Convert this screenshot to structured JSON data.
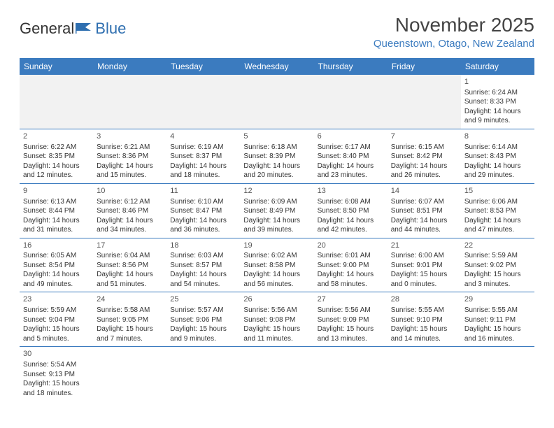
{
  "logo": {
    "text1": "General",
    "text2": "Blue"
  },
  "title": "November 2025",
  "location": "Queenstown, Otago, New Zealand",
  "colors": {
    "header_bg": "#3b7bbf",
    "link": "#3b7bbf",
    "blank_bg": "#f2f2f2"
  },
  "weekdays": [
    "Sunday",
    "Monday",
    "Tuesday",
    "Wednesday",
    "Thursday",
    "Friday",
    "Saturday"
  ],
  "weeks": [
    [
      null,
      null,
      null,
      null,
      null,
      null,
      {
        "n": "1",
        "rise": "Sunrise: 6:24 AM",
        "set": "Sunset: 8:33 PM",
        "dl1": "Daylight: 14 hours",
        "dl2": "and 9 minutes."
      }
    ],
    [
      {
        "n": "2",
        "rise": "Sunrise: 6:22 AM",
        "set": "Sunset: 8:35 PM",
        "dl1": "Daylight: 14 hours",
        "dl2": "and 12 minutes."
      },
      {
        "n": "3",
        "rise": "Sunrise: 6:21 AM",
        "set": "Sunset: 8:36 PM",
        "dl1": "Daylight: 14 hours",
        "dl2": "and 15 minutes."
      },
      {
        "n": "4",
        "rise": "Sunrise: 6:19 AM",
        "set": "Sunset: 8:37 PM",
        "dl1": "Daylight: 14 hours",
        "dl2": "and 18 minutes."
      },
      {
        "n": "5",
        "rise": "Sunrise: 6:18 AM",
        "set": "Sunset: 8:39 PM",
        "dl1": "Daylight: 14 hours",
        "dl2": "and 20 minutes."
      },
      {
        "n": "6",
        "rise": "Sunrise: 6:17 AM",
        "set": "Sunset: 8:40 PM",
        "dl1": "Daylight: 14 hours",
        "dl2": "and 23 minutes."
      },
      {
        "n": "7",
        "rise": "Sunrise: 6:15 AM",
        "set": "Sunset: 8:42 PM",
        "dl1": "Daylight: 14 hours",
        "dl2": "and 26 minutes."
      },
      {
        "n": "8",
        "rise": "Sunrise: 6:14 AM",
        "set": "Sunset: 8:43 PM",
        "dl1": "Daylight: 14 hours",
        "dl2": "and 29 minutes."
      }
    ],
    [
      {
        "n": "9",
        "rise": "Sunrise: 6:13 AM",
        "set": "Sunset: 8:44 PM",
        "dl1": "Daylight: 14 hours",
        "dl2": "and 31 minutes."
      },
      {
        "n": "10",
        "rise": "Sunrise: 6:12 AM",
        "set": "Sunset: 8:46 PM",
        "dl1": "Daylight: 14 hours",
        "dl2": "and 34 minutes."
      },
      {
        "n": "11",
        "rise": "Sunrise: 6:10 AM",
        "set": "Sunset: 8:47 PM",
        "dl1": "Daylight: 14 hours",
        "dl2": "and 36 minutes."
      },
      {
        "n": "12",
        "rise": "Sunrise: 6:09 AM",
        "set": "Sunset: 8:49 PM",
        "dl1": "Daylight: 14 hours",
        "dl2": "and 39 minutes."
      },
      {
        "n": "13",
        "rise": "Sunrise: 6:08 AM",
        "set": "Sunset: 8:50 PM",
        "dl1": "Daylight: 14 hours",
        "dl2": "and 42 minutes."
      },
      {
        "n": "14",
        "rise": "Sunrise: 6:07 AM",
        "set": "Sunset: 8:51 PM",
        "dl1": "Daylight: 14 hours",
        "dl2": "and 44 minutes."
      },
      {
        "n": "15",
        "rise": "Sunrise: 6:06 AM",
        "set": "Sunset: 8:53 PM",
        "dl1": "Daylight: 14 hours",
        "dl2": "and 47 minutes."
      }
    ],
    [
      {
        "n": "16",
        "rise": "Sunrise: 6:05 AM",
        "set": "Sunset: 8:54 PM",
        "dl1": "Daylight: 14 hours",
        "dl2": "and 49 minutes."
      },
      {
        "n": "17",
        "rise": "Sunrise: 6:04 AM",
        "set": "Sunset: 8:56 PM",
        "dl1": "Daylight: 14 hours",
        "dl2": "and 51 minutes."
      },
      {
        "n": "18",
        "rise": "Sunrise: 6:03 AM",
        "set": "Sunset: 8:57 PM",
        "dl1": "Daylight: 14 hours",
        "dl2": "and 54 minutes."
      },
      {
        "n": "19",
        "rise": "Sunrise: 6:02 AM",
        "set": "Sunset: 8:58 PM",
        "dl1": "Daylight: 14 hours",
        "dl2": "and 56 minutes."
      },
      {
        "n": "20",
        "rise": "Sunrise: 6:01 AM",
        "set": "Sunset: 9:00 PM",
        "dl1": "Daylight: 14 hours",
        "dl2": "and 58 minutes."
      },
      {
        "n": "21",
        "rise": "Sunrise: 6:00 AM",
        "set": "Sunset: 9:01 PM",
        "dl1": "Daylight: 15 hours",
        "dl2": "and 0 minutes."
      },
      {
        "n": "22",
        "rise": "Sunrise: 5:59 AM",
        "set": "Sunset: 9:02 PM",
        "dl1": "Daylight: 15 hours",
        "dl2": "and 3 minutes."
      }
    ],
    [
      {
        "n": "23",
        "rise": "Sunrise: 5:59 AM",
        "set": "Sunset: 9:04 PM",
        "dl1": "Daylight: 15 hours",
        "dl2": "and 5 minutes."
      },
      {
        "n": "24",
        "rise": "Sunrise: 5:58 AM",
        "set": "Sunset: 9:05 PM",
        "dl1": "Daylight: 15 hours",
        "dl2": "and 7 minutes."
      },
      {
        "n": "25",
        "rise": "Sunrise: 5:57 AM",
        "set": "Sunset: 9:06 PM",
        "dl1": "Daylight: 15 hours",
        "dl2": "and 9 minutes."
      },
      {
        "n": "26",
        "rise": "Sunrise: 5:56 AM",
        "set": "Sunset: 9:08 PM",
        "dl1": "Daylight: 15 hours",
        "dl2": "and 11 minutes."
      },
      {
        "n": "27",
        "rise": "Sunrise: 5:56 AM",
        "set": "Sunset: 9:09 PM",
        "dl1": "Daylight: 15 hours",
        "dl2": "and 13 minutes."
      },
      {
        "n": "28",
        "rise": "Sunrise: 5:55 AM",
        "set": "Sunset: 9:10 PM",
        "dl1": "Daylight: 15 hours",
        "dl2": "and 14 minutes."
      },
      {
        "n": "29",
        "rise": "Sunrise: 5:55 AM",
        "set": "Sunset: 9:11 PM",
        "dl1": "Daylight: 15 hours",
        "dl2": "and 16 minutes."
      }
    ],
    [
      {
        "n": "30",
        "rise": "Sunrise: 5:54 AM",
        "set": "Sunset: 9:13 PM",
        "dl1": "Daylight: 15 hours",
        "dl2": "and 18 minutes."
      },
      null,
      null,
      null,
      null,
      null,
      null
    ]
  ]
}
